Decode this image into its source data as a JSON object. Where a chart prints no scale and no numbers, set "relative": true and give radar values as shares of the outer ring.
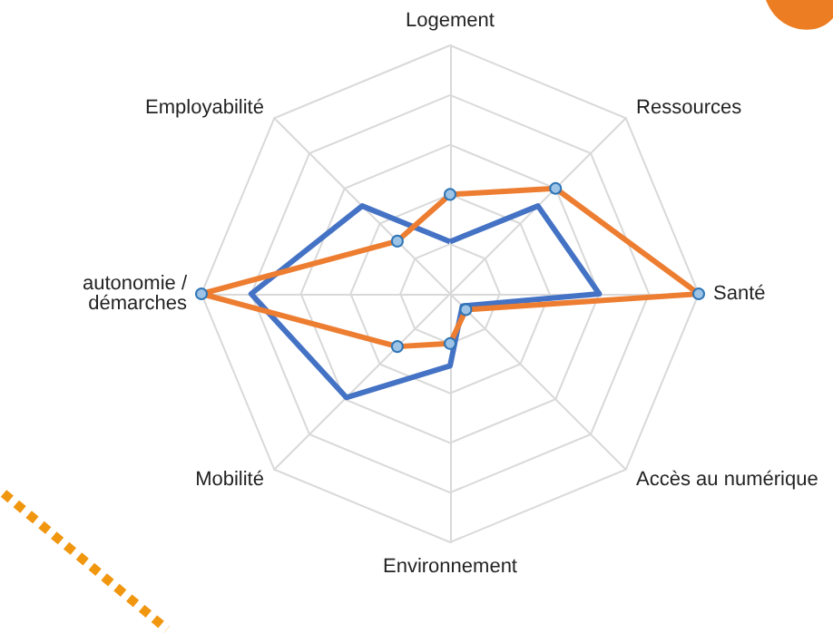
{
  "chart_data": {
    "type": "radar",
    "relative": true,
    "categories": [
      "Logement",
      "Ressources",
      "Santé",
      "Accès au numérique",
      "Environnement",
      "Mobilité",
      "autonomie / démarches",
      "Employabilité"
    ],
    "series": [
      {
        "color": "#4472c4",
        "marker": "none",
        "values": [
          0.21,
          0.5,
          0.6,
          0.07,
          0.29,
          0.59,
          0.8,
          0.5
        ]
      },
      {
        "color": "#ed7d31",
        "marker": "circle",
        "values": [
          0.4,
          0.6,
          1.0,
          0.09,
          0.2,
          0.3,
          1.0,
          0.3
        ]
      }
    ]
  }
}
